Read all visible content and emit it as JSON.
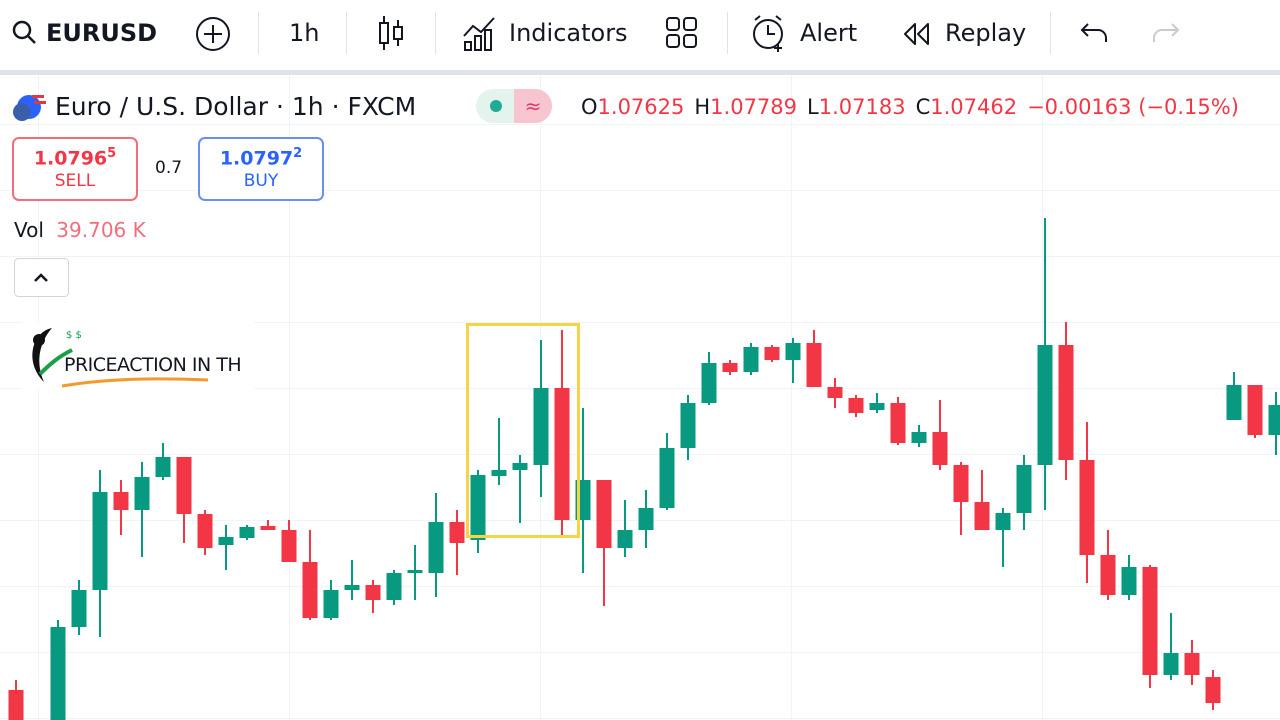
{
  "toolbar": {
    "symbol": "EURUSD",
    "interval": "1h",
    "indicators": "Indicators",
    "alert": "Alert",
    "replay": "Replay"
  },
  "legend": {
    "title": "Euro / U.S. Dollar · 1h · FXCM",
    "open_label": "O",
    "open": "1.07625",
    "high_label": "H",
    "high": "1.07789",
    "low_label": "L",
    "low": "1.07183",
    "close_label": "C",
    "close": "1.07462",
    "change": "−0.00163 (−0.15%)"
  },
  "trade": {
    "sell_price": "1.0796",
    "sell_pip": "5",
    "sell": "SELL",
    "spread": "0.7",
    "buy_price": "1.0797",
    "buy_pip": "2",
    "buy": "BUY"
  },
  "volume": {
    "label": "Vol",
    "value": "39.706 K"
  },
  "watermark": "PRICEACTION IN TH",
  "chart_data": {
    "type": "candlestick",
    "open": [
      1.0712,
      null,
      1.0706,
      1.07246,
      1.0732,
      1.07516,
      1.0748,
      1.07546,
      1.07586,
      1.07472,
      1.0741,
      1.07424,
      1.07448,
      1.0744,
      1.07376,
      1.07264,
      1.0732,
      1.0733,
      1.073,
      1.07354,
      1.07354,
      1.07456,
      1.0742,
      1.07548,
      1.0756,
      1.0757,
      1.07724,
      1.0746,
      1.0754,
      1.07404,
      1.0744,
      1.07484,
      1.07604,
      1.07694,
      1.07774,
      1.07756,
      1.07806,
      1.0778,
      1.07814,
      1.07726,
      1.07704,
      1.0768,
      1.07694,
      1.07614,
      1.07636,
      1.0757,
      1.07496,
      1.0744,
      1.07474,
      1.0757,
      1.0781,
      1.0758,
      1.0739,
      1.0731,
      1.07366,
      1.0715,
      1.07194,
      1.07146,
      1.0766,
      1.0773,
      1.0763
    ],
    "high": [
      1.0714,
      null,
      1.0726,
      1.0734,
      1.0756,
      1.0754,
      1.07576,
      1.07614,
      1.07586,
      1.0748,
      1.0745,
      1.0745,
      1.0746,
      1.0746,
      1.0744,
      1.0734,
      1.0738,
      1.0734,
      1.0736,
      1.0741,
      1.07514,
      1.0748,
      1.0756,
      1.07664,
      1.0759,
      1.0782,
      1.0784,
      1.07684,
      1.07534,
      1.075,
      1.0752,
      1.07634,
      1.0771,
      1.07796,
      1.0778,
      1.07814,
      1.0781,
      1.07824,
      1.0784,
      1.07744,
      1.0771,
      1.07714,
      1.07706,
      1.0765,
      1.077,
      1.07576,
      1.0756,
      1.07484,
      1.0759,
      1.08064,
      1.07856,
      1.07656,
      1.0744,
      1.0739,
      1.0737,
      1.07274,
      1.0722,
      1.0716,
      1.07756,
      1.0773,
      1.07716
    ],
    "low": [
      1.0706,
      null,
      1.0706,
      1.0723,
      1.07226,
      1.0743,
      1.07386,
      1.0754,
      1.07414,
      1.0739,
      1.0736,
      1.0742,
      1.0744,
      1.07376,
      1.0726,
      1.0726,
      1.073,
      1.07274,
      1.0729,
      1.073,
      1.07306,
      1.0735,
      1.07394,
      1.0753,
      1.07454,
      1.07506,
      1.0743,
      1.07354,
      1.07288,
      1.07386,
      1.07404,
      1.0748,
      1.0758,
      1.0769,
      1.0775,
      1.0775,
      1.07776,
      1.07734,
      1.07726,
      1.07684,
      1.07666,
      1.07674,
      1.0761,
      1.07606,
      1.0756,
      1.0743,
      1.0744,
      1.07366,
      1.0744,
      1.0748,
      1.0754,
      1.07334,
      1.073,
      1.073,
      1.07124,
      1.0714,
      1.0713,
      1.0708,
      1.0766,
      1.07624,
      1.0759
    ],
    "close": [
      1.0706,
      null,
      1.07246,
      1.0732,
      1.07516,
      1.0748,
      1.07546,
      1.07586,
      1.07472,
      1.07404,
      1.07426,
      1.07446,
      1.0744,
      1.07376,
      1.07264,
      1.0732,
      1.0733,
      1.073,
      1.07354,
      1.0736,
      1.07456,
      1.07414,
      1.0755,
      1.0756,
      1.07574,
      1.07724,
      1.0746,
      1.0754,
      1.07404,
      1.0744,
      1.07484,
      1.07604,
      1.07694,
      1.07774,
      1.07756,
      1.07806,
      1.0778,
      1.07814,
      1.07726,
      1.07704,
      1.07674,
      1.07694,
      1.07614,
      1.07636,
      1.0757,
      1.07496,
      1.0744,
      1.07474,
      1.0757,
      1.0781,
      1.0758,
      1.0739,
      1.0731,
      1.07366,
      1.0715,
      1.07194,
      1.0715,
      1.07094,
      1.0773,
      1.0763,
      1.0769
    ],
    "ylim": [
      1.0706,
      1.0836
    ],
    "up_color": "#089981",
    "down_color": "#f23645"
  }
}
